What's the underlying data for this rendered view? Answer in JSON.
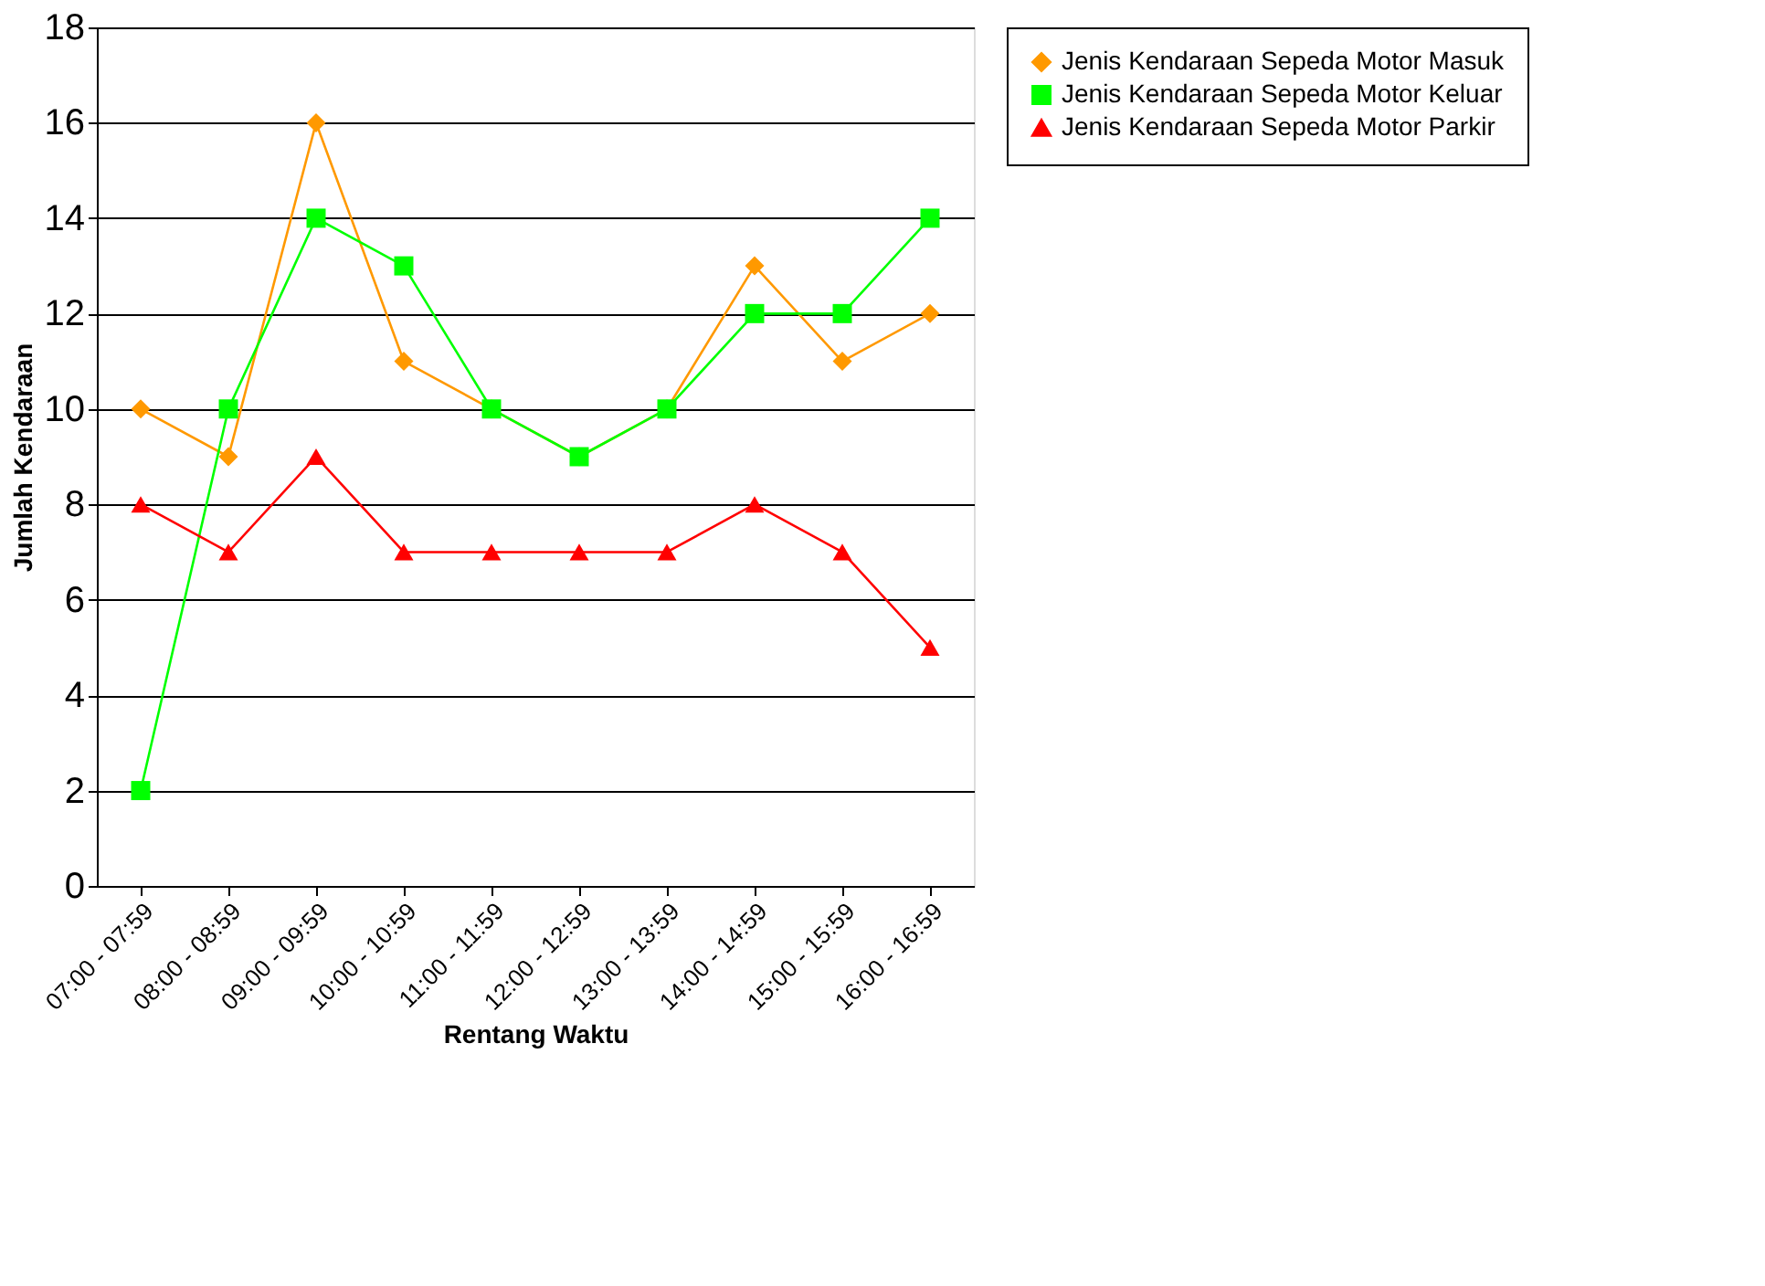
{
  "chart_data": {
    "type": "line",
    "xlabel": "Rentang Waktu",
    "ylabel": "Jumlah Kendaraan",
    "categories": [
      "07:00 - 07:59",
      "08:00 - 08:59",
      "09:00 - 09:59",
      "10:00 - 10:59",
      "11:00 - 11:59",
      "12:00 - 12:59",
      "13:00 - 13:59",
      "14:00 - 14:59",
      "15:00 - 15:59",
      "16:00 - 16:59"
    ],
    "series": [
      {
        "name": "Jenis Kendaraan Sepeda Motor Masuk",
        "color": "#ff9900",
        "marker": "diamond",
        "values": [
          10,
          9,
          16,
          11,
          10,
          9,
          10,
          13,
          11,
          12
        ]
      },
      {
        "name": "Jenis Kendaraan Sepeda Motor Keluar",
        "color": "#00ff00",
        "marker": "square",
        "values": [
          2,
          10,
          14,
          13,
          10,
          9,
          10,
          12,
          12,
          14
        ]
      },
      {
        "name": "Jenis Kendaraan Sepeda Motor Parkir",
        "color": "#ff0000",
        "marker": "triangle",
        "values": [
          8,
          7,
          9,
          7,
          7,
          7,
          7,
          8,
          7,
          5
        ]
      }
    ],
    "ylim": [
      0,
      18
    ],
    "yticks": [
      0,
      2,
      4,
      6,
      8,
      10,
      12,
      14,
      16,
      18
    ],
    "grid": "y",
    "legend": "right",
    "line_style": "solid"
  }
}
